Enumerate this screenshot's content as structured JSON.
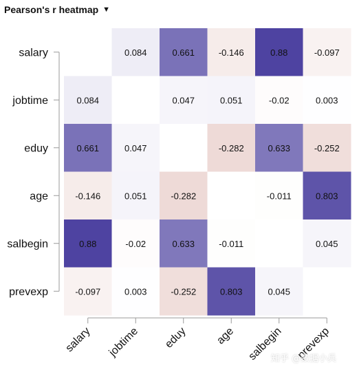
{
  "title_bar": {
    "title": "Pearson's r heatmap",
    "dropdown_icon": "caret-down-icon"
  },
  "watermark": "知乎 @数据小兵",
  "chart_data": {
    "type": "heatmap",
    "title": "Pearson's r heatmap",
    "xlabel": "",
    "ylabel": "",
    "variables": [
      "salary",
      "jobtime",
      "eduy",
      "age",
      "salbegin",
      "prevexp"
    ],
    "matrix": [
      [
        null,
        0.084,
        0.661,
        -0.146,
        0.88,
        -0.097
      ],
      [
        0.084,
        null,
        0.047,
        0.051,
        -0.02,
        0.003
      ],
      [
        0.661,
        0.047,
        null,
        -0.282,
        0.633,
        -0.252
      ],
      [
        -0.146,
        0.051,
        -0.282,
        null,
        -0.011,
        0.803
      ],
      [
        0.88,
        -0.02,
        0.633,
        -0.011,
        null,
        0.045
      ],
      [
        -0.097,
        0.003,
        -0.252,
        0.803,
        0.045,
        null
      ]
    ],
    "labels": [
      [
        "",
        "0.084",
        "0.661",
        "-0.146",
        "0.88",
        "-0.097"
      ],
      [
        "0.084",
        "",
        "0.047",
        "0.051",
        "-0.02",
        "0.003"
      ],
      [
        "0.661",
        "0.047",
        "",
        "-0.282",
        "0.633",
        "-0.252"
      ],
      [
        "-0.146",
        "0.051",
        "-0.282",
        "",
        "-0.011",
        "0.803"
      ],
      [
        "0.88",
        "-0.02",
        "0.633",
        "-0.011",
        "",
        "0.045"
      ],
      [
        "-0.097",
        "0.003",
        "-0.252",
        "0.803",
        "0.045",
        ""
      ]
    ],
    "color_positive": "#4a3f9f",
    "color_negative": "#c98a80",
    "color_zero": "#ffffff"
  }
}
